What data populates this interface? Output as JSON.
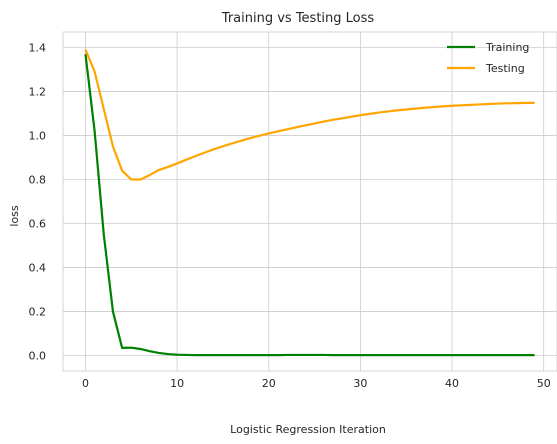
{
  "chart_data": {
    "type": "line",
    "title": "Training vs Testing Loss",
    "xlabel": "Logistic Regression Iteration",
    "ylabel": "loss",
    "xlim": [
      -2.45,
      51.45
    ],
    "ylim": [
      -0.07,
      1.47
    ],
    "xticks": [
      0,
      10,
      20,
      30,
      40,
      50
    ],
    "yticks": [
      0.0,
      0.2,
      0.4,
      0.6,
      0.8,
      1.0,
      1.2,
      1.4
    ],
    "xtick_labels": [
      "0",
      "10",
      "20",
      "30",
      "40",
      "50"
    ],
    "ytick_labels": [
      "0.0",
      "0.2",
      "0.4",
      "0.6",
      "0.8",
      "1.0",
      "1.2",
      "1.4"
    ],
    "grid": true,
    "legend_position": "top-right",
    "x": [
      0,
      1,
      2,
      3,
      4,
      5,
      6,
      7,
      8,
      9,
      10,
      11,
      12,
      13,
      14,
      15,
      16,
      17,
      18,
      19,
      20,
      21,
      22,
      23,
      24,
      25,
      26,
      27,
      28,
      29,
      30,
      31,
      32,
      33,
      34,
      35,
      36,
      37,
      38,
      39,
      40,
      41,
      42,
      43,
      44,
      45,
      46,
      47,
      48,
      49
    ],
    "series": [
      {
        "name": "Training",
        "color": "#008000",
        "values": [
          1.37,
          1.02,
          0.55,
          0.2,
          0.035,
          0.036,
          0.03,
          0.02,
          0.012,
          0.007,
          0.004,
          0.003,
          0.002,
          0.002,
          0.002,
          0.002,
          0.002,
          0.002,
          0.002,
          0.002,
          0.002,
          0.002,
          0.003,
          0.003,
          0.003,
          0.003,
          0.003,
          0.002,
          0.002,
          0.002,
          0.002,
          0.002,
          0.002,
          0.002,
          0.002,
          0.002,
          0.002,
          0.002,
          0.002,
          0.002,
          0.002,
          0.002,
          0.002,
          0.002,
          0.002,
          0.002,
          0.002,
          0.002,
          0.002,
          0.002
        ]
      },
      {
        "name": "Testing",
        "color": "#ffa500",
        "values": [
          1.39,
          1.29,
          1.12,
          0.95,
          0.84,
          0.8,
          0.8,
          0.82,
          0.843,
          0.857,
          0.873,
          0.89,
          0.906,
          0.922,
          0.937,
          0.951,
          0.964,
          0.976,
          0.988,
          0.999,
          1.009,
          1.019,
          1.028,
          1.037,
          1.046,
          1.054,
          1.063,
          1.071,
          1.078,
          1.085,
          1.092,
          1.098,
          1.104,
          1.109,
          1.114,
          1.118,
          1.122,
          1.126,
          1.129,
          1.132,
          1.135,
          1.137,
          1.139,
          1.141,
          1.143,
          1.145,
          1.146,
          1.147,
          1.148,
          1.148
        ]
      }
    ]
  }
}
